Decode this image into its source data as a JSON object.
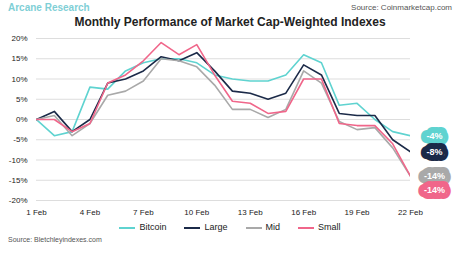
{
  "chart_data": {
    "type": "line",
    "brand": "Arcane Research",
    "source_top": "Source: Coinmarketcap.com",
    "title": "Monthly Performance of Market Cap-Weighted Indexes",
    "source": "Source: Bletchleyindexes.com",
    "x": [
      1,
      2,
      3,
      4,
      5,
      6,
      7,
      8,
      9,
      10,
      11,
      12,
      13,
      14,
      15,
      16,
      17,
      18,
      19,
      20,
      21,
      22
    ],
    "xlim": [
      1,
      22
    ],
    "xticks": [
      {
        "value": 1,
        "label": "1 Feb"
      },
      {
        "value": 4,
        "label": "4 Feb"
      },
      {
        "value": 7,
        "label": "7 Feb"
      },
      {
        "value": 10,
        "label": "10 Feb"
      },
      {
        "value": 13,
        "label": "13 Feb"
      },
      {
        "value": 16,
        "label": "16 Feb"
      },
      {
        "value": 19,
        "label": "19 Feb"
      },
      {
        "value": 22,
        "label": "22 Feb"
      }
    ],
    "ylim": [
      -20,
      20
    ],
    "yticks": [
      {
        "value": -20,
        "label": "-20%"
      },
      {
        "value": -15,
        "label": "-15%"
      },
      {
        "value": -10,
        "label": "-10%"
      },
      {
        "value": -5,
        "label": "-5%"
      },
      {
        "value": 0,
        "label": "0%"
      },
      {
        "value": 5,
        "label": "5%"
      },
      {
        "value": 10,
        "label": "10%"
      },
      {
        "value": 15,
        "label": "15%"
      },
      {
        "value": 20,
        "label": "20%"
      }
    ],
    "grid": true,
    "legend": "bottom",
    "series": [
      {
        "name": "Bitcoin",
        "color": "#5fd3d0",
        "end_label": "-4%",
        "values": [
          0,
          -4,
          -3,
          8,
          7.5,
          12,
          14,
          15,
          15,
          14,
          11,
          10,
          9.5,
          9.5,
          11,
          16,
          14,
          3.5,
          4,
          0,
          -3,
          -4
        ]
      },
      {
        "name": "Large",
        "color": "#1b2a48",
        "end_label": "-8%",
        "values": [
          0,
          2,
          -3,
          0,
          9,
          10,
          12,
          15.5,
          14.5,
          16.5,
          12,
          7,
          6.5,
          5,
          6.5,
          13.5,
          11,
          1.5,
          1,
          1,
          -5,
          -8
        ]
      },
      {
        "name": "Mid",
        "color": "#a9a9a9",
        "end_label": "-14%",
        "values": [
          0,
          1,
          -4,
          -1,
          6,
          7,
          9.5,
          15,
          14.5,
          13,
          8.5,
          2.5,
          2.5,
          0.5,
          2.5,
          12,
          9,
          -0.5,
          -2.5,
          -2,
          -7,
          -14
        ]
      },
      {
        "name": "Small",
        "color": "#f0668a",
        "end_label": "-14%",
        "values": [
          0,
          0,
          -3,
          -1,
          9,
          11,
          14.5,
          19,
          16,
          18.5,
          11,
          4.5,
          4,
          1.5,
          2,
          10,
          10,
          -1,
          -1.5,
          -1.5,
          -6,
          -14
        ]
      }
    ]
  }
}
